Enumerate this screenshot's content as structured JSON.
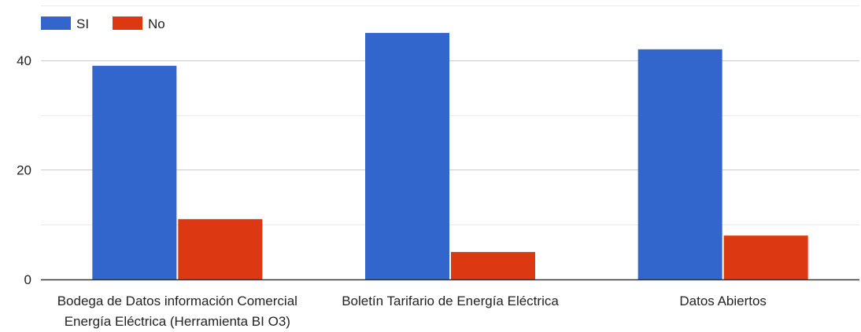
{
  "chart_data": {
    "type": "bar",
    "categories": [
      [
        "Bodega de Datos información Comercial",
        "Energía Eléctrica (Herramienta BI O3)"
      ],
      [
        "Boletín Tarifario de Energía Eléctrica"
      ],
      [
        "Datos Abiertos"
      ]
    ],
    "series": [
      {
        "name": "SI",
        "color": "#3366cc",
        "values": [
          39,
          45,
          42
        ]
      },
      {
        "name": "No",
        "color": "#dc3912",
        "values": [
          11,
          5,
          8
        ]
      }
    ],
    "yticks": [
      0,
      20,
      40
    ],
    "ylim": [
      0,
      50
    ],
    "grid": true,
    "legend": "top-left",
    "title": "",
    "xlabel": "",
    "ylabel": ""
  }
}
